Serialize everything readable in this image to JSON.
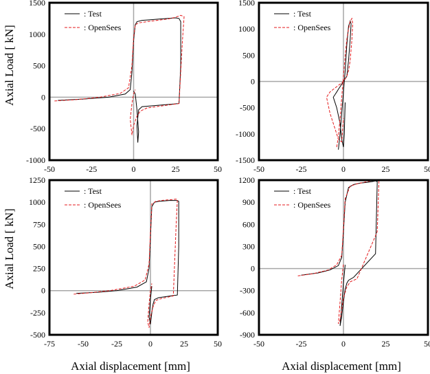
{
  "figure": {
    "ylabel_top": "Axial Load [ kN]",
    "ylabel_bottom": "Axial Load [ kN]",
    "xlabel_left": "Axial displacement [mm]",
    "xlabel_right": "Axial displacement [mm]"
  },
  "legend": {
    "test": ": Test",
    "opensees": ": OpenSees"
  },
  "colors": {
    "test": "#000000",
    "opensees": "#e41a1c",
    "zero_line": "#a6a6a6"
  },
  "chart_data": [
    {
      "type": "line",
      "xlim": [
        -50,
        50
      ],
      "ylim": [
        -1000,
        1500
      ],
      "x_ticks": [
        -50,
        -25,
        0,
        25,
        50
      ],
      "y_ticks": [
        -1000,
        -500,
        0,
        500,
        1000,
        1500
      ],
      "legend_position": "top-left",
      "series": [
        {
          "name": ": Test",
          "x": [
            -45,
            -30,
            -15,
            -5,
            -2,
            -1,
            0,
            1,
            2,
            5,
            10,
            15,
            20,
            25,
            27,
            28,
            28,
            27,
            5,
            3,
            2,
            2.5,
            3,
            2,
            1,
            0
          ],
          "y": [
            -50,
            -30,
            0,
            50,
            120,
            400,
            900,
            1150,
            1200,
            1220,
            1230,
            1240,
            1250,
            1260,
            1250,
            1200,
            500,
            -100,
            -150,
            -200,
            -450,
            -720,
            -550,
            -200,
            50,
            100
          ]
        },
        {
          "name": ": OpenSees",
          "x": [
            -47,
            -35,
            -20,
            -8,
            -3,
            -1,
            0,
            1,
            3,
            8,
            14,
            20,
            25,
            28,
            30,
            29,
            27,
            8,
            4,
            2,
            0,
            -1,
            -2,
            -1,
            0,
            1
          ],
          "y": [
            -60,
            -40,
            0,
            60,
            150,
            500,
            950,
            1150,
            1180,
            1200,
            1220,
            1240,
            1270,
            1300,
            1280,
            900,
            -100,
            -170,
            -220,
            -300,
            -450,
            -600,
            -350,
            -100,
            50,
            120
          ]
        }
      ]
    },
    {
      "type": "line",
      "xlim": [
        -50,
        50
      ],
      "ylim": [
        -1500,
        1500
      ],
      "x_ticks": [
        -50,
        -25,
        0,
        25,
        50
      ],
      "y_ticks": [
        -1500,
        -1000,
        -500,
        0,
        500,
        1000,
        1500
      ],
      "legend_position": "top-left",
      "series": [
        {
          "name": ": Test",
          "x": [
            -3,
            -2,
            -1,
            0,
            1,
            2,
            3,
            4,
            4.5,
            4,
            3,
            2,
            1,
            0,
            -1,
            -2,
            -3,
            -4,
            -5,
            -6,
            -4,
            -2,
            -1,
            0,
            0.5,
            1
          ],
          "y": [
            -1300,
            -1000,
            -600,
            -200,
            200,
            700,
            1050,
            1150,
            1100,
            800,
            400,
            100,
            50,
            0,
            -50,
            -100,
            -150,
            -200,
            -250,
            -300,
            -500,
            -800,
            -1100,
            -1250,
            -1000,
            -400
          ]
        },
        {
          "name": ": OpenSees",
          "x": [
            -4,
            -3,
            -2,
            -1,
            0,
            1,
            2,
            3,
            4,
            5,
            5.5,
            5,
            4,
            3,
            2,
            0,
            -2,
            -4,
            -6,
            -8,
            -10,
            -8,
            -5,
            -3,
            -1,
            0
          ],
          "y": [
            -1250,
            -1050,
            -700,
            -300,
            100,
            500,
            800,
            1000,
            1150,
            1200,
            1100,
            800,
            400,
            200,
            100,
            0,
            -50,
            -100,
            -150,
            -200,
            -300,
            -600,
            -900,
            -1100,
            -1150,
            -700
          ]
        }
      ]
    },
    {
      "type": "line",
      "xlim": [
        -75,
        50
      ],
      "ylim": [
        -500,
        1250
      ],
      "x_ticks": [
        -75,
        -50,
        -25,
        0,
        25,
        50
      ],
      "y_ticks": [
        -500,
        -250,
        0,
        250,
        500,
        750,
        1000,
        1250
      ],
      "legend_position": "top-left",
      "series": [
        {
          "name": ": Test",
          "x": [
            -55,
            -40,
            -25,
            -10,
            -3,
            -1,
            0,
            1,
            3,
            6,
            10,
            14,
            18,
            20,
            21,
            21,
            20,
            6,
            3,
            2,
            1,
            0,
            -1,
            0,
            1
          ],
          "y": [
            -30,
            -20,
            0,
            40,
            100,
            250,
            600,
            950,
            1000,
            1010,
            1015,
            1020,
            1020,
            1020,
            1010,
            500,
            -50,
            -80,
            -100,
            -150,
            -250,
            -380,
            -300,
            -100,
            50
          ]
        },
        {
          "name": ": OpenSees",
          "x": [
            -57,
            -45,
            -30,
            -12,
            -4,
            -1,
            0,
            1,
            4,
            8,
            12,
            16,
            19,
            20,
            19,
            17,
            8,
            4,
            2,
            0,
            -1,
            -2,
            -1,
            0,
            1
          ],
          "y": [
            -40,
            -25,
            0,
            50,
            120,
            300,
            650,
            980,
            1010,
            1020,
            1025,
            1030,
            1035,
            1030,
            700,
            -60,
            -90,
            -110,
            -180,
            -300,
            -420,
            -350,
            -150,
            0,
            80
          ]
        }
      ]
    },
    {
      "type": "line",
      "xlim": [
        -50,
        50
      ],
      "ylim": [
        -900,
        1200
      ],
      "x_ticks": [
        -50,
        -25,
        0,
        25,
        50
      ],
      "y_ticks": [
        -900,
        -600,
        -300,
        0,
        300,
        600,
        900,
        1200
      ],
      "legend_position": "top-left",
      "series": [
        {
          "name": ": Test",
          "x": [
            -25,
            -15,
            -8,
            -3,
            -1,
            0,
            1,
            3,
            6,
            10,
            14,
            17,
            19,
            20,
            19,
            6,
            3,
            2,
            1,
            0,
            -1,
            -2,
            -1,
            0,
            1
          ],
          "y": [
            -90,
            -60,
            -20,
            40,
            150,
            500,
            900,
            1100,
            1140,
            1160,
            1170,
            1180,
            1190,
            1180,
            200,
            -120,
            -160,
            -200,
            -280,
            -450,
            -650,
            -780,
            -500,
            -200,
            50
          ]
        },
        {
          "name": ": OpenSees",
          "x": [
            -27,
            -18,
            -9,
            -4,
            -1,
            0,
            1,
            4,
            8,
            12,
            16,
            19,
            20,
            21,
            20,
            8,
            4,
            2,
            0,
            -1,
            -2,
            -3,
            -2,
            -1,
            0
          ],
          "y": [
            -100,
            -70,
            -20,
            50,
            180,
            550,
            950,
            1120,
            1150,
            1170,
            1190,
            1200,
            1210,
            1200,
            500,
            -140,
            -180,
            -250,
            -400,
            -550,
            -700,
            -750,
            -450,
            -150,
            60
          ]
        }
      ]
    }
  ]
}
